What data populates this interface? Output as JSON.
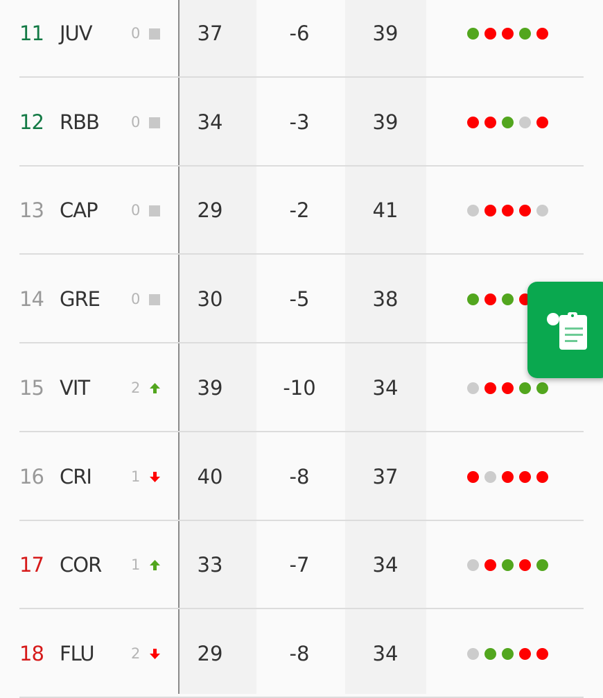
{
  "colors": {
    "win": "#52a61e",
    "loss": "#ff0000",
    "draw": "#cccccc",
    "rank_green": "#137a45",
    "rank_grey": "#999999",
    "rank_red": "#d61a1a",
    "fab": "#0aa84f"
  },
  "rows": [
    {
      "rank": "11",
      "team": "JUV",
      "change": "0",
      "trend": "same",
      "rank_zone": "green",
      "col1": "37",
      "col2": "-6",
      "col3": "39",
      "form": [
        "W",
        "L",
        "L",
        "W",
        "L"
      ]
    },
    {
      "rank": "12",
      "team": "RBB",
      "change": "0",
      "trend": "same",
      "rank_zone": "green",
      "col1": "34",
      "col2": "-3",
      "col3": "39",
      "form": [
        "L",
        "L",
        "W",
        "D",
        "L"
      ]
    },
    {
      "rank": "13",
      "team": "CAP",
      "change": "0",
      "trend": "same",
      "rank_zone": "grey",
      "col1": "29",
      "col2": "-2",
      "col3": "41",
      "form": [
        "D",
        "L",
        "L",
        "L",
        "D"
      ]
    },
    {
      "rank": "14",
      "team": "GRE",
      "change": "0",
      "trend": "same",
      "rank_zone": "grey",
      "col1": "30",
      "col2": "-5",
      "col3": "38",
      "form": [
        "W",
        "L",
        "W",
        "L"
      ]
    },
    {
      "rank": "15",
      "team": "VIT",
      "change": "2",
      "trend": "up",
      "rank_zone": "grey",
      "col1": "39",
      "col2": "-10",
      "col3": "34",
      "form": [
        "D",
        "L",
        "L",
        "W",
        "W"
      ]
    },
    {
      "rank": "16",
      "team": "CRI",
      "change": "1",
      "trend": "down",
      "rank_zone": "grey",
      "col1": "40",
      "col2": "-8",
      "col3": "37",
      "form": [
        "L",
        "D",
        "L",
        "L",
        "L"
      ]
    },
    {
      "rank": "17",
      "team": "COR",
      "change": "1",
      "trend": "up",
      "rank_zone": "red",
      "col1": "33",
      "col2": "-7",
      "col3": "34",
      "form": [
        "D",
        "L",
        "W",
        "L",
        "W"
      ]
    },
    {
      "rank": "18",
      "team": "FLU",
      "change": "2",
      "trend": "down",
      "rank_zone": "red",
      "col1": "29",
      "col2": "-8",
      "col3": "34",
      "form": [
        "D",
        "W",
        "W",
        "L",
        "L"
      ]
    }
  ],
  "fab": {
    "icon": "clipboard-notes-icon"
  }
}
